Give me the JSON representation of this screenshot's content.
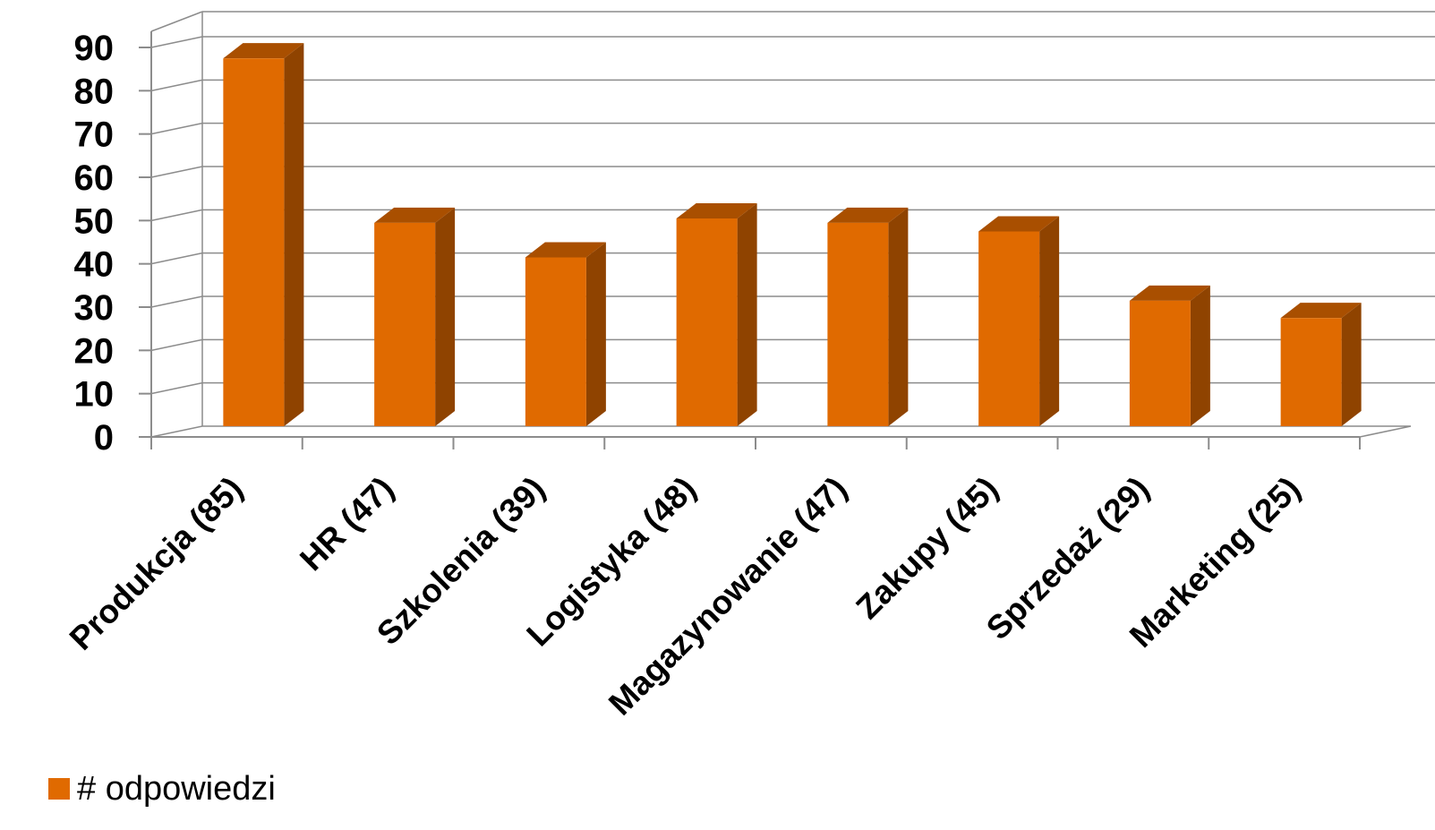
{
  "chart_data": {
    "type": "bar",
    "style": "3d-column",
    "categories": [
      "Produkcja (85)",
      "HR (47)",
      "Szkolenia (39)",
      "Logistyka (48)",
      "Magazynowanie (47)",
      "Zakupy (45)",
      "Sprzedaż (29)",
      "Marketing (25)"
    ],
    "series": [
      {
        "name": "# odpowiedzi",
        "values": [
          85,
          47,
          39,
          48,
          47,
          45,
          29,
          25
        ]
      }
    ],
    "yticks": [
      "0",
      "10",
      "20",
      "30",
      "40",
      "50",
      "60",
      "70",
      "80",
      "90"
    ],
    "ylim": [
      0,
      90
    ],
    "grid": true,
    "legend_position": "bottom-left",
    "colors": {
      "front": "#E06A00",
      "side": "#8F4300",
      "top": "#A94F00",
      "grid": "#8c8c8c"
    }
  }
}
